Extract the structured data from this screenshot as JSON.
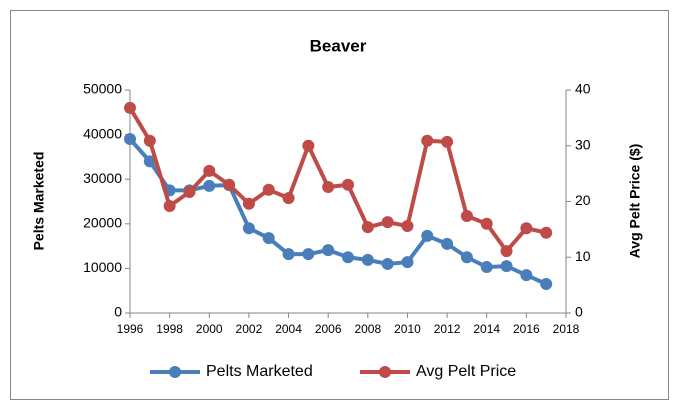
{
  "chart_data": {
    "type": "line",
    "title": "Beaver",
    "y_label": "Pelts Marketed",
    "y2_label": "Avg Pelt Price ($)",
    "x": [
      1996,
      1997,
      1998,
      1999,
      2000,
      2001,
      2002,
      2003,
      2004,
      2005,
      2006,
      2007,
      2008,
      2009,
      2010,
      2011,
      2012,
      2013,
      2014,
      2015,
      2016,
      2017
    ],
    "series": [
      {
        "name": "Pelts Marketed",
        "color": "#4a7ebb",
        "axis": "y",
        "values": [
          39000,
          34000,
          27500,
          27500,
          28500,
          28700,
          19000,
          16800,
          13200,
          13200,
          14100,
          12500,
          11900,
          11000,
          11400,
          17300,
          15500,
          12500,
          10300,
          10500,
          8500,
          6500
        ]
      },
      {
        "name": "Avg Pelt Price",
        "color": "#be4b48",
        "axis": "y2",
        "values": [
          36.8,
          30.9,
          19.2,
          21.7,
          25.5,
          23.0,
          19.6,
          22.1,
          20.6,
          30.0,
          22.6,
          23.0,
          15.4,
          16.3,
          15.6,
          30.9,
          30.7,
          17.4,
          16.0,
          11.1,
          15.2,
          14.4
        ]
      }
    ],
    "xlim": [
      1996,
      2018
    ],
    "xticks": [
      1996,
      1998,
      2000,
      2002,
      2004,
      2006,
      2008,
      2010,
      2012,
      2014,
      2016,
      2018
    ],
    "ylim": [
      0,
      50000
    ],
    "yticks": [
      0,
      10000,
      20000,
      30000,
      40000,
      50000
    ],
    "y2lim": [
      0,
      40
    ],
    "y2ticks": [
      0,
      10,
      20,
      30,
      40
    ],
    "grid": false,
    "legend": "bottom"
  }
}
